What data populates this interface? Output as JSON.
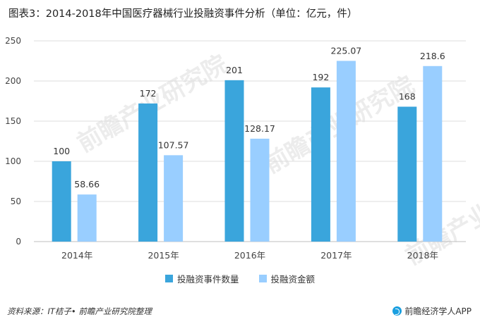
{
  "title": "图表3：2014-2018年中国医疗器械行业投融资事件分析（单位：亿元，件）",
  "source": "资料来源：IT桔子• 前瞻产业研究院整理",
  "brand": "前瞻经济学人APP",
  "watermark": "前瞻产业研究院",
  "colors": {
    "series1": "#3aa5dc",
    "series2": "#99ceff",
    "grid": "#dcdcdc",
    "axis_text": "#444444"
  },
  "chart_data": {
    "type": "bar",
    "categories": [
      "2014年",
      "2015年",
      "2016年",
      "2017年",
      "2018年"
    ],
    "series": [
      {
        "name": "投融资事件数量",
        "values": [
          100,
          172,
          201,
          192,
          168
        ]
      },
      {
        "name": "投融资金额",
        "values": [
          58.66,
          107.57,
          128.17,
          225.07,
          218.6
        ]
      }
    ],
    "value_labels": [
      [
        "100",
        "172",
        "201",
        "192",
        "168"
      ],
      [
        "58.66",
        "107.57",
        "128.17",
        "225.07",
        "218.6"
      ]
    ],
    "ylim": [
      0,
      250
    ],
    "yticks": [
      0,
      50,
      100,
      150,
      200,
      250
    ],
    "grid": true,
    "legend": "bottom"
  }
}
